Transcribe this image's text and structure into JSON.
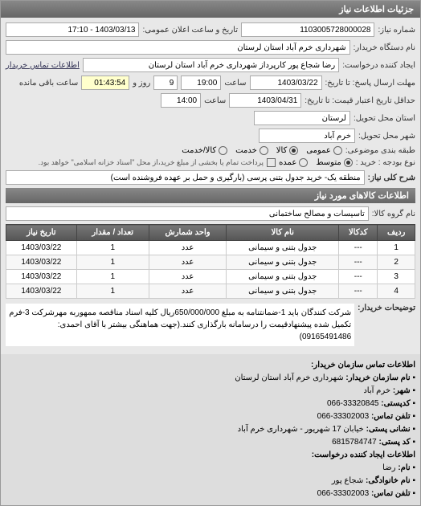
{
  "header": {
    "title": "جزئیات اطلاعات نیاز"
  },
  "meta": {
    "number_label": "شماره نیاز:",
    "number_value": "1103005728000028",
    "datetime_label": "تاریخ و ساعت اعلان عمومی:",
    "datetime_value": "1403/03/13 - 17:10",
    "buyer_label": "نام دستگاه خریدار:",
    "buyer_value": "شهرداری خرم آباد استان لرستان",
    "requester_label": "ایجاد کننده درخواست:",
    "requester_value": "رضا شجاع پور کارپرداز شهرداری خرم آباد استان لرستان",
    "contact_link": "اطلاعات تماس خریدار"
  },
  "deadlines": {
    "response_until_label": "مهلت ارسال پاسخ: تا تاریخ:",
    "response_date": "1403/03/22",
    "time_label": "ساعت",
    "response_time": "19:00",
    "days_value": "9",
    "days_label": "روز و",
    "countdown": "01:43:54",
    "remaining_label": "ساعت باقی مانده",
    "credit_label": "حداقل تاریخ اعتبار قیمت: تا تاریخ:",
    "credit_date": "1403/04/31",
    "credit_time": "14:00",
    "delivery_province_label": "استان محل تحویل:",
    "delivery_province_value": "لرستان",
    "delivery_city_label": "شهر محل تحویل:",
    "delivery_city_value": "خرم آباد"
  },
  "budget": {
    "label": "طبقه بندی موضوعی:",
    "options": [
      "عمومی",
      "کالا",
      "خدمت",
      "کالا/خدمت"
    ],
    "selected": 1,
    "kind_label": "نوع بودجه : خرید :",
    "kind_options": [
      "متوسط",
      "عمده"
    ],
    "kind_selected": 0,
    "checkbox_label": "پرداخت تمام یا بخشی از مبلغ خرید،از محل \"اسناد خزانه اسلامی\" خواهد بود."
  },
  "overall": {
    "label": "شرح کلی نیاز:",
    "value": "منطقه یک- خرید جدول بتنی پرسی  (بارگیری و حمل بر عهده فروشنده است)"
  },
  "items_section": {
    "title": "اطلاعات کالاهای مورد نیاز",
    "group_label": "نام گروه کالا:",
    "group_value": "تاسیسات و مصالح ساختمانی"
  },
  "table": {
    "columns": [
      "ردیف",
      "کدکالا",
      "نام کالا",
      "واحد شمارش",
      "تعداد / مقدار",
      "تاریخ نیاز"
    ],
    "rows": [
      [
        "1",
        "---",
        "جدول بتنی و سیمانی",
        "عدد",
        "1",
        "1403/03/22"
      ],
      [
        "2",
        "---",
        "جدول بتنی و سیمانی",
        "عدد",
        "1",
        "1403/03/22"
      ],
      [
        "3",
        "---",
        "جدول بتنی و سیمانی",
        "عدد",
        "1",
        "1403/03/22"
      ],
      [
        "4",
        "---",
        "جدول بتنی و سیمانی",
        "عدد",
        "1",
        "1403/03/22"
      ]
    ]
  },
  "description": {
    "label": "توضیحات خریدار:",
    "text": "شرکت کنندگان باید 1-ضمانتنامه به مبلغ 650/000/000ریال کلیه اسناد مناقصه ممهوربه مهرشرکت 3-فرم تکمیل شده پیشنهادقیمت را درسامانه بارگذاری کنند.(جهت هماهنگی بیشتر با آقای احمدی: 09165491486)"
  },
  "contact": {
    "title": "اطلاعات تماس سازمان خریدار:",
    "org_label": "نام سازمان خریدار:",
    "org_value": "شهرداری خرم آباد استان لرستان",
    "city_label": "شهر:",
    "city_value": "خرم آباد",
    "postal_label": "کدپستی:",
    "postal_value": "33320845-066",
    "phone_label": "تلفن تماس:",
    "phone_value": "33302003-066",
    "address_label": "نشانی پستی:",
    "address_value": "خیابان 17 شهریور - شهرداری خرم آباد",
    "postcode_label": "کد پستی:",
    "postcode_value": "6815784747",
    "creator_title": "اطلاعات ایجاد کننده درخواست:",
    "name_label": "نام:",
    "name_value": "رضا",
    "family_label": "نام خانوادگی:",
    "family_value": "شجاع پور",
    "creator_phone_label": "تلفن تماس:",
    "creator_phone_value": "33302003-066"
  }
}
